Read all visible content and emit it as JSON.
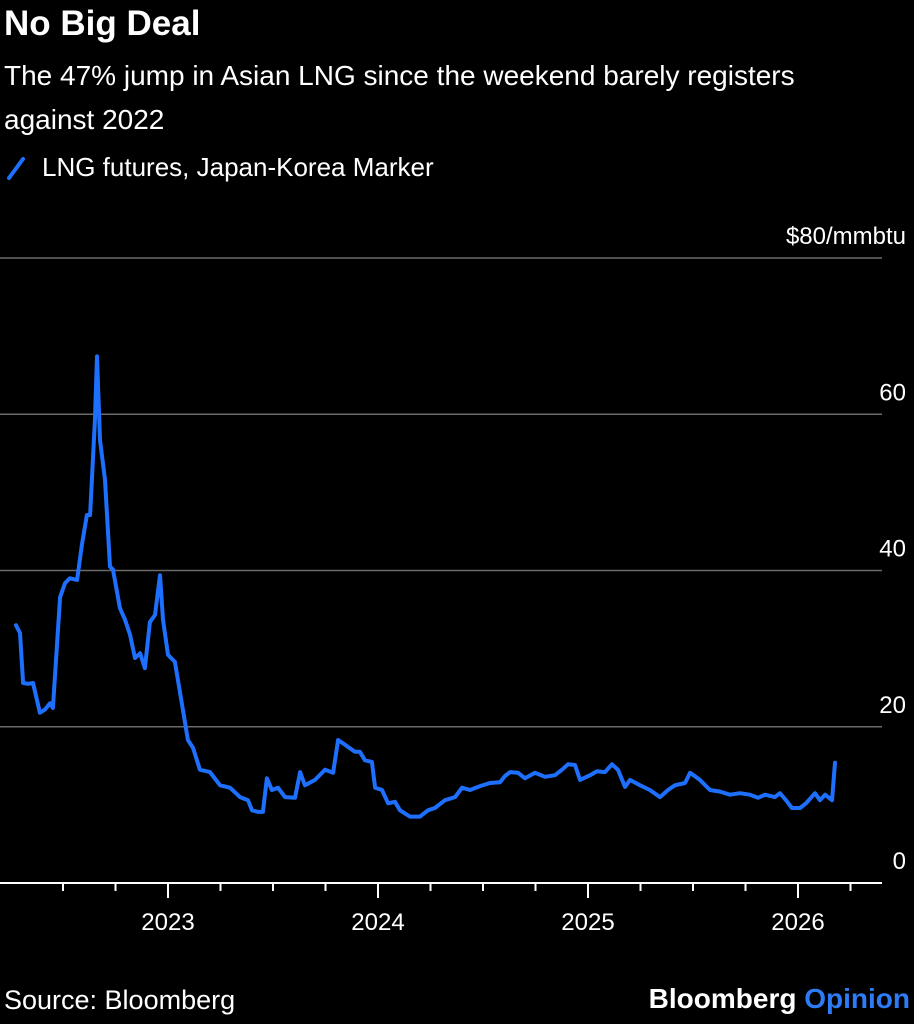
{
  "chart_data": {
    "type": "line",
    "title": "No Big Deal",
    "subtitle": "The 47% jump in Asian LNG since the weekend barely registers against 2022",
    "source": "Source: Bloomberg",
    "branding": {
      "name": "Bloomberg",
      "product": "Opinion"
    },
    "xlim": [
      2022.2,
      2026.4
    ],
    "xticks": [
      2023,
      2024,
      2025,
      2026
    ],
    "xminorticks": [
      2022.5,
      2022.75,
      2023.25,
      2023.5,
      2023.75,
      2024.25,
      2024.5,
      2024.75,
      2025.25,
      2025.5,
      2025.75,
      2026.25
    ],
    "ylim": [
      0,
      80
    ],
    "yticks": [
      0,
      20,
      40,
      60,
      {
        "value": 80,
        "label": "$80/mmbtu"
      }
    ],
    "grid": true,
    "series": [
      {
        "name": "LNG futures, Japan-Korea Marker",
        "color": "#1f6fff",
        "x": [
          2022.276,
          2022.295,
          2022.31,
          2022.333,
          2022.357,
          2022.39,
          2022.414,
          2022.438,
          2022.452,
          2022.486,
          2022.51,
          2022.533,
          2022.567,
          2022.59,
          2022.614,
          2022.629,
          2022.652,
          2022.662,
          2022.676,
          2022.7,
          2022.724,
          2022.738,
          2022.771,
          2022.795,
          2022.819,
          2022.843,
          2022.867,
          2022.89,
          2022.914,
          2022.938,
          2022.962,
          2022.976,
          2023.0,
          2023.033,
          2023.067,
          2023.095,
          2023.119,
          2023.152,
          2023.2,
          2023.248,
          2023.295,
          2023.343,
          2023.381,
          2023.4,
          2023.429,
          2023.452,
          2023.471,
          2023.495,
          2023.524,
          2023.557,
          2023.605,
          2023.629,
          2023.652,
          2023.7,
          2023.748,
          2023.786,
          2023.81,
          2023.843,
          2023.89,
          2023.914,
          2023.938,
          2023.971,
          2023.986,
          2024.019,
          2024.048,
          2024.081,
          2024.105,
          2024.152,
          2024.2,
          2024.238,
          2024.271,
          2024.319,
          2024.367,
          2024.4,
          2024.438,
          2024.486,
          2024.533,
          2024.581,
          2024.605,
          2024.629,
          2024.667,
          2024.7,
          2024.748,
          2024.795,
          2024.843,
          2024.876,
          2024.905,
          2024.938,
          2024.962,
          2025.01,
          2025.043,
          2025.081,
          2025.114,
          2025.143,
          2025.176,
          2025.2,
          2025.248,
          2025.295,
          2025.343,
          2025.381,
          2025.414,
          2025.462,
          2025.486,
          2025.533,
          2025.581,
          2025.629,
          2025.676,
          2025.724,
          2025.771,
          2025.81,
          2025.843,
          2025.89,
          2025.914,
          2025.943,
          2025.971,
          2026.01,
          2026.038,
          2026.081,
          2026.105,
          2026.129,
          2026.162,
          2026.176
        ],
        "values": [
          33.0,
          32.0,
          25.6,
          25.5,
          25.6,
          21.8,
          22.2,
          23.0,
          22.4,
          36.6,
          38.4,
          39.0,
          38.8,
          43.3,
          47.1,
          47.1,
          59.2,
          67.4,
          56.7,
          51.6,
          40.5,
          40.1,
          35.2,
          33.7,
          31.8,
          28.8,
          29.4,
          27.5,
          33.4,
          34.3,
          39.4,
          33.7,
          29.2,
          28.3,
          22.8,
          18.3,
          17.3,
          14.5,
          14.2,
          12.5,
          12.2,
          11.0,
          10.6,
          9.3,
          9.1,
          9.1,
          13.4,
          11.9,
          12.2,
          11.0,
          10.9,
          14.2,
          12.5,
          13.2,
          14.5,
          14.1,
          18.3,
          17.7,
          16.8,
          16.8,
          15.7,
          15.5,
          12.2,
          11.9,
          10.2,
          10.4,
          9.3,
          8.5,
          8.5,
          9.3,
          9.6,
          10.6,
          11.0,
          12.2,
          11.9,
          12.4,
          12.8,
          12.9,
          13.7,
          14.2,
          14.1,
          13.4,
          14.1,
          13.6,
          13.8,
          14.5,
          15.2,
          15.1,
          13.2,
          13.8,
          14.3,
          14.2,
          15.2,
          14.5,
          12.3,
          13.2,
          12.5,
          11.9,
          11.0,
          11.9,
          12.5,
          12.8,
          14.1,
          13.2,
          11.9,
          11.7,
          11.3,
          11.5,
          11.3,
          10.9,
          11.3,
          11.0,
          11.5,
          10.6,
          9.6,
          9.6,
          10.2,
          11.5,
          10.6,
          11.3,
          10.6,
          15.4
        ]
      }
    ]
  }
}
